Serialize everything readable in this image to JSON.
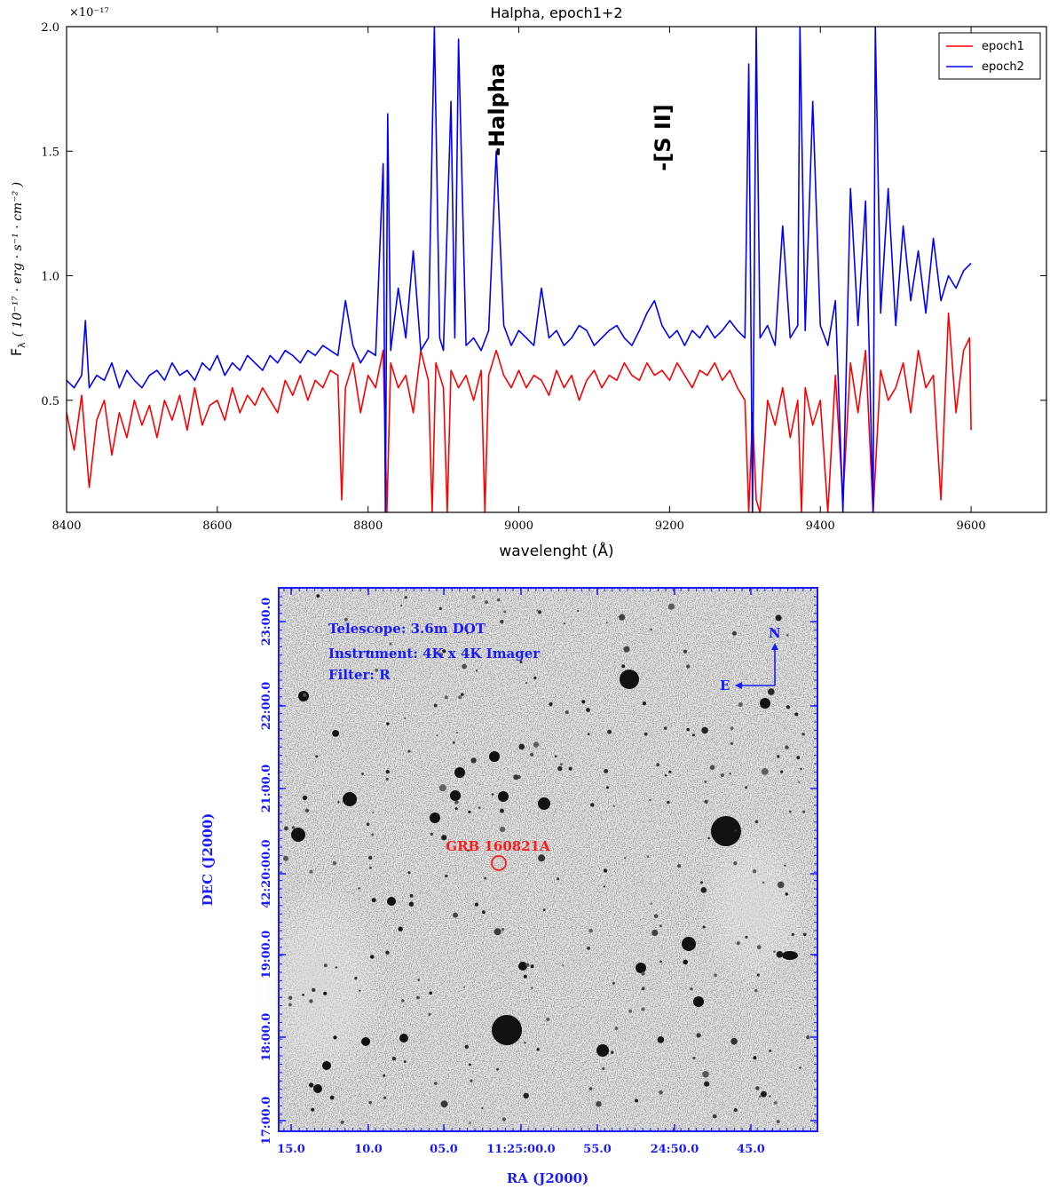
{
  "chart_data": [
    {
      "type": "line",
      "title": "Halpha, epoch1+2",
      "xlabel": "wavelenght (Å)",
      "ylabel": "F_λ ( 10^-17 · erg · s^-1 · cm^-2 )",
      "ylabel_parts": {
        "main": "F",
        "sub": "λ",
        "units": "( 10⁻¹⁷ · erg · s⁻¹ · cm⁻² )"
      },
      "y_multiplier": "×10⁻¹⁷",
      "xlim": [
        8400,
        9700
      ],
      "ylim": [
        0.05,
        2.0
      ],
      "x_ticks": [
        8400,
        8600,
        8800,
        9000,
        9200,
        9400,
        9600
      ],
      "y_ticks": [
        0.5,
        1.0,
        1.5,
        2.0
      ],
      "y_tick_labels": [
        "0.5",
        "1.0",
        "1.5",
        "2.0"
      ],
      "legend": {
        "placement": "top-right"
      },
      "annotations": [
        {
          "text": "Halpha",
          "x": 8970,
          "y": 1.48
        },
        {
          "text": "[S II]",
          "x": 9190,
          "y": 1.42
        }
      ],
      "series": [
        {
          "name": "epoch1",
          "color": "#ff0000",
          "x": [
            8400,
            8410,
            8420,
            8430,
            8440,
            8450,
            8460,
            8470,
            8480,
            8490,
            8500,
            8510,
            8520,
            8530,
            8540,
            8550,
            8560,
            8570,
            8580,
            8590,
            8600,
            8610,
            8620,
            8630,
            8640,
            8650,
            8660,
            8670,
            8680,
            8690,
            8700,
            8710,
            8720,
            8730,
            8740,
            8750,
            8760,
            8765,
            8770,
            8780,
            8790,
            8800,
            8810,
            8820,
            8825,
            8830,
            8840,
            8850,
            8860,
            8870,
            8880,
            8885,
            8890,
            8900,
            8905,
            8910,
            8920,
            8930,
            8940,
            8950,
            8955,
            8960,
            8970,
            8980,
            8990,
            9000,
            9010,
            9020,
            9030,
            9040,
            9050,
            9060,
            9070,
            9080,
            9090,
            9100,
            9110,
            9120,
            9130,
            9140,
            9150,
            9160,
            9170,
            9180,
            9190,
            9200,
            9210,
            9220,
            9230,
            9240,
            9250,
            9260,
            9270,
            9280,
            9290,
            9300,
            9305,
            9310,
            9315,
            9320,
            9330,
            9340,
            9350,
            9360,
            9370,
            9375,
            9380,
            9390,
            9400,
            9410,
            9420,
            9430,
            9440,
            9450,
            9460,
            9470,
            9480,
            9490,
            9500,
            9510,
            9520,
            9530,
            9540,
            9550,
            9560,
            9570,
            9580,
            9590,
            9598,
            9600
          ],
          "y": [
            0.45,
            0.3,
            0.52,
            0.15,
            0.42,
            0.5,
            0.28,
            0.45,
            0.35,
            0.5,
            0.4,
            0.48,
            0.35,
            0.5,
            0.42,
            0.52,
            0.38,
            0.55,
            0.4,
            0.48,
            0.5,
            0.42,
            0.55,
            0.45,
            0.52,
            0.48,
            0.55,
            0.5,
            0.45,
            0.58,
            0.52,
            0.6,
            0.5,
            0.58,
            0.55,
            0.62,
            0.6,
            0.1,
            0.55,
            0.65,
            0.45,
            0.6,
            0.55,
            0.7,
            0.05,
            0.65,
            0.55,
            0.6,
            0.45,
            0.7,
            0.58,
            0.05,
            0.65,
            0.55,
            0.05,
            0.62,
            0.55,
            0.6,
            0.5,
            0.62,
            0.05,
            0.6,
            0.7,
            0.6,
            0.55,
            0.62,
            0.55,
            0.6,
            0.58,
            0.52,
            0.62,
            0.55,
            0.6,
            0.5,
            0.58,
            0.62,
            0.55,
            0.6,
            0.58,
            0.65,
            0.6,
            0.58,
            0.65,
            0.6,
            0.62,
            0.58,
            0.65,
            0.6,
            0.55,
            0.62,
            0.6,
            0.65,
            0.58,
            0.62,
            0.55,
            0.5,
            0.05,
            0.45,
            0.1,
            0.05,
            0.5,
            0.4,
            0.55,
            0.35,
            0.5,
            0.05,
            0.55,
            0.4,
            0.5,
            0.05,
            0.6,
            0.1,
            0.65,
            0.45,
            0.7,
            0.05,
            0.62,
            0.5,
            0.55,
            0.65,
            0.45,
            0.7,
            0.55,
            0.6,
            0.1,
            0.85,
            0.45,
            0.7,
            0.75,
            0.38
          ]
        },
        {
          "name": "epoch2",
          "color": "#0000ff",
          "x": [
            8400,
            8410,
            8420,
            8425,
            8430,
            8440,
            8450,
            8460,
            8470,
            8480,
            8490,
            8500,
            8510,
            8520,
            8530,
            8540,
            8550,
            8560,
            8570,
            8580,
            8590,
            8600,
            8610,
            8620,
            8630,
            8640,
            8650,
            8660,
            8670,
            8680,
            8690,
            8700,
            8710,
            8720,
            8730,
            8740,
            8750,
            8760,
            8770,
            8780,
            8790,
            8800,
            8810,
            8820,
            8823,
            8826,
            8830,
            8840,
            8850,
            8860,
            8870,
            8880,
            8888,
            8895,
            8900,
            8910,
            8915,
            8920,
            8930,
            8940,
            8950,
            8960,
            8970,
            8980,
            8990,
            9000,
            9010,
            9020,
            9030,
            9040,
            9050,
            9060,
            9070,
            9080,
            9090,
            9100,
            9110,
            9120,
            9130,
            9140,
            9150,
            9160,
            9170,
            9180,
            9190,
            9200,
            9210,
            9220,
            9230,
            9240,
            9250,
            9260,
            9270,
            9280,
            9290,
            9300,
            9305,
            9310,
            9315,
            9320,
            9330,
            9340,
            9350,
            9360,
            9370,
            9373,
            9380,
            9390,
            9400,
            9410,
            9420,
            9430,
            9440,
            9450,
            9460,
            9470,
            9473,
            9480,
            9490,
            9500,
            9510,
            9520,
            9530,
            9540,
            9550,
            9560,
            9570,
            9580,
            9590,
            9600
          ],
          "y": [
            0.58,
            0.55,
            0.6,
            0.82,
            0.55,
            0.6,
            0.58,
            0.65,
            0.55,
            0.62,
            0.58,
            0.55,
            0.6,
            0.62,
            0.58,
            0.65,
            0.6,
            0.62,
            0.58,
            0.65,
            0.62,
            0.68,
            0.6,
            0.65,
            0.62,
            0.68,
            0.65,
            0.62,
            0.68,
            0.65,
            0.7,
            0.68,
            0.65,
            0.7,
            0.68,
            0.72,
            0.7,
            0.68,
            0.9,
            0.72,
            0.65,
            0.7,
            0.68,
            1.45,
            0.05,
            1.65,
            0.7,
            0.95,
            0.75,
            1.1,
            0.7,
            0.75,
            2.0,
            0.75,
            0.7,
            1.7,
            0.75,
            1.95,
            0.72,
            0.75,
            0.7,
            0.78,
            1.5,
            0.8,
            0.72,
            0.78,
            0.75,
            0.72,
            0.95,
            0.75,
            0.78,
            0.72,
            0.75,
            0.8,
            0.78,
            0.72,
            0.75,
            0.78,
            0.8,
            0.75,
            0.72,
            0.78,
            0.85,
            0.9,
            0.8,
            0.75,
            0.78,
            0.72,
            0.78,
            0.75,
            0.8,
            0.75,
            0.78,
            0.82,
            0.78,
            0.75,
            1.85,
            0.05,
            2.0,
            0.75,
            0.8,
            0.72,
            1.2,
            0.75,
            0.8,
            2.0,
            0.78,
            1.7,
            0.8,
            0.72,
            0.9,
            0.05,
            1.35,
            0.8,
            1.3,
            0.05,
            2.0,
            0.85,
            1.35,
            0.8,
            1.2,
            0.9,
            1.1,
            0.85,
            1.15,
            0.9,
            1.0,
            0.95,
            1.02,
            1.05
          ]
        }
      ]
    },
    {
      "type": "image",
      "ylabel": "DEC (J2000)",
      "xlabel": "RA (J2000)",
      "dec_tick_labels": [
        "23:00.0",
        "22:00.0",
        "21:00.0",
        "42:20:00.0",
        "19:00.0",
        "18:00.0",
        "17:00.0"
      ],
      "ra_tick_labels": [
        "15.0",
        "10.0",
        "05.0",
        "11:25:00.0",
        "55.0",
        "24:50.0",
        "45.0"
      ],
      "info": [
        "Telescope: 3.6m DOT",
        "Instrument: 4K x 4K Imager",
        "Filter: R"
      ],
      "target_label": "GRB 160821A",
      "compass": {
        "north": "N",
        "east": "E"
      }
    }
  ]
}
